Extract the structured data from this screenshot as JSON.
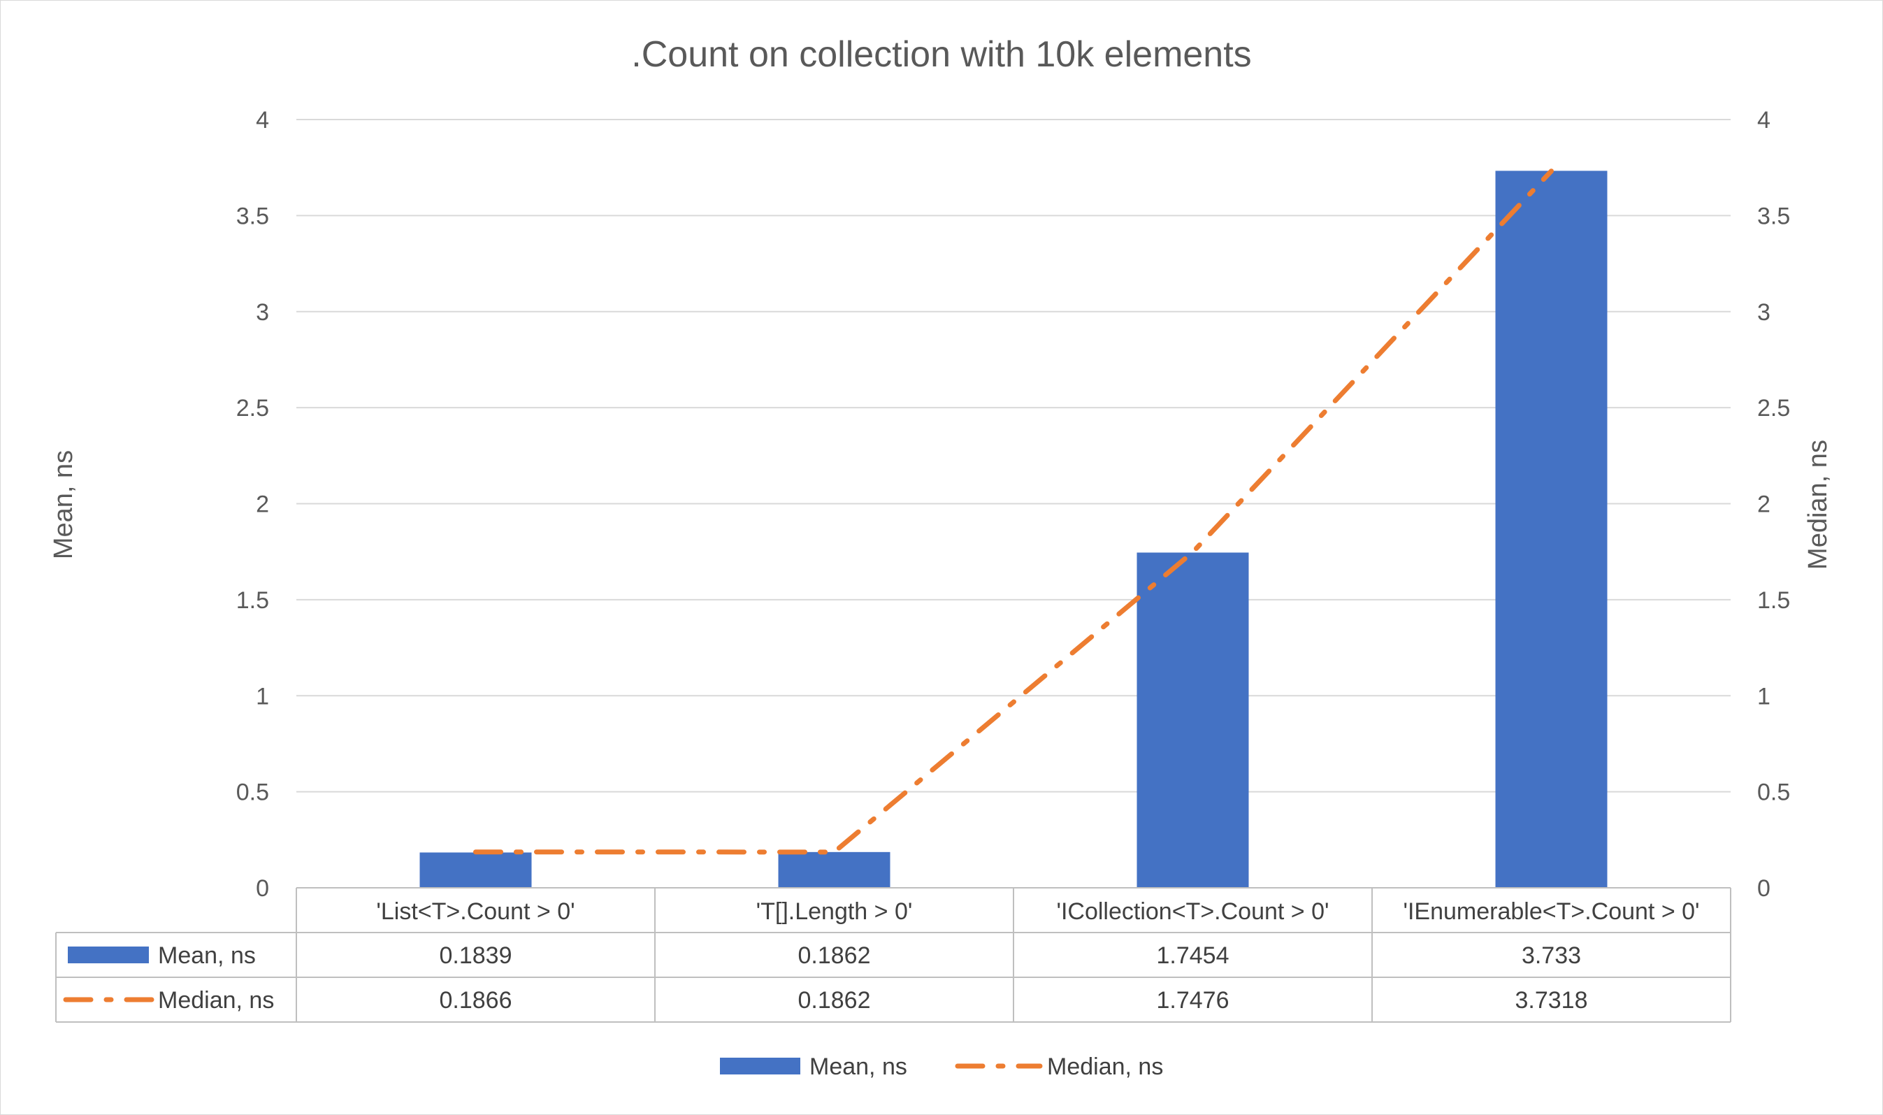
{
  "chart_data": {
    "type": "bar",
    "title": ".Count on collection with 10k elements",
    "categories": [
      "'List<T>.Count > 0'",
      "'T[].Length > 0'",
      "'ICollection<T>.Count > 0'",
      "'IEnumerable<T>.Count > 0'"
    ],
    "series": [
      {
        "name": "Mean, ns",
        "kind": "bar",
        "axis": "left",
        "color": "#4472c4",
        "values": [
          0.1839,
          0.1862,
          1.7454,
          3.733
        ],
        "labels": [
          "0.1839",
          "0.1862",
          "1.7454",
          "3.733"
        ]
      },
      {
        "name": "Median, ns",
        "kind": "line",
        "line_style": "dash-dot",
        "axis": "right",
        "color": "#ed7d31",
        "values": [
          0.1866,
          0.1862,
          1.7476,
          3.7318
        ],
        "labels": [
          "0.1866",
          "0.1862",
          "1.7476",
          "3.7318"
        ]
      }
    ],
    "ylabel": "Mean, ns",
    "y2label": "Median, ns",
    "ylim": [
      0,
      4
    ],
    "y2lim": [
      0,
      4
    ],
    "yticks": [
      "0",
      "0.5",
      "1",
      "1.5",
      "2",
      "2.5",
      "3",
      "3.5",
      "4"
    ],
    "grid": true,
    "data_table": true,
    "legend_position": "bottom"
  }
}
